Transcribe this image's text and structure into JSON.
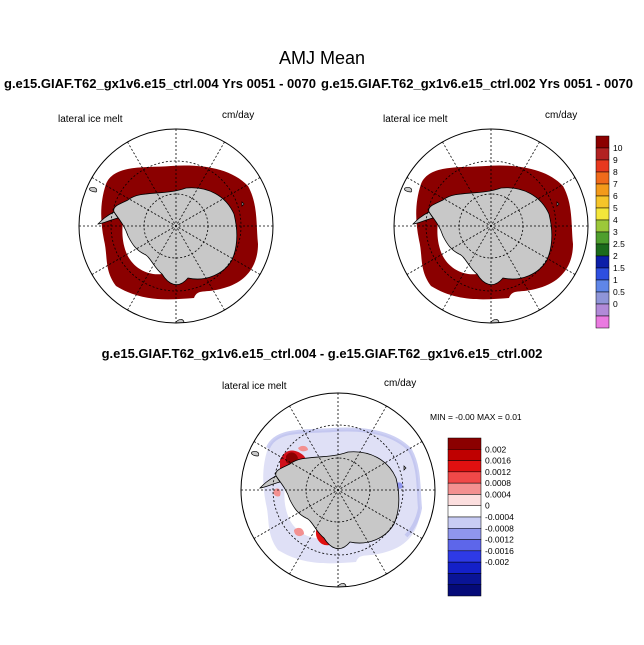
{
  "title": "AMJ Mean",
  "panels": [
    {
      "case_label": "g.e15.GIAF.T62_gx1v6.e15_ctrl.004  Yrs 0051 - 0070",
      "variable": "lateral ice melt",
      "units": "cm/day"
    },
    {
      "case_label": "g.e15.GIAF.T62_gx1v6.e15_ctrl.002  Yrs 0051 - 0070",
      "variable": "lateral ice melt",
      "units": "cm/day"
    }
  ],
  "difference_panel": {
    "title": "g.e15.GIAF.T62_gx1v6.e15_ctrl.004 - g.e15.GIAF.T62_gx1v6.e15_ctrl.002",
    "variable": "lateral ice melt",
    "units": "cm/day",
    "min_max": "MIN =  -0.00 MAX =   0.01"
  },
  "colorbar_main": {
    "labels": [
      "10",
      "9",
      "8",
      "7",
      "6",
      "5",
      "4",
      "3",
      "2.5",
      "2",
      "1.5",
      "1",
      "0.5",
      "0"
    ],
    "colors": [
      "#8b0000",
      "#b22222",
      "#e8381e",
      "#f06a1a",
      "#f39a1a",
      "#f6c52a",
      "#f4e63a",
      "#9cc83a",
      "#4f9f2d",
      "#1c6b1c",
      "#0c1fa8",
      "#2e4fe0",
      "#5f86e8",
      "#8f95d8",
      "#b18ad8",
      "#ea7ae0"
    ]
  },
  "colorbar_diff": {
    "labels": [
      "0.002",
      "0.0016",
      "0.0012",
      "0.0008",
      "0.0004",
      "0",
      "-0.0004",
      "-0.0008",
      "-0.0012",
      "-0.0016",
      "-0.002"
    ],
    "colors": [
      "#8b0000",
      "#bf0000",
      "#e01010",
      "#f04848",
      "#f39090",
      "#fcdede",
      "#ffffff",
      "#c8ccf4",
      "#8f96ee",
      "#5d66ea",
      "#2e3ae6",
      "#1420c8",
      "#0a1496",
      "#050a78"
    ]
  },
  "colors": {
    "land": "#c8c8c8",
    "melt_field": "#8b0000"
  }
}
